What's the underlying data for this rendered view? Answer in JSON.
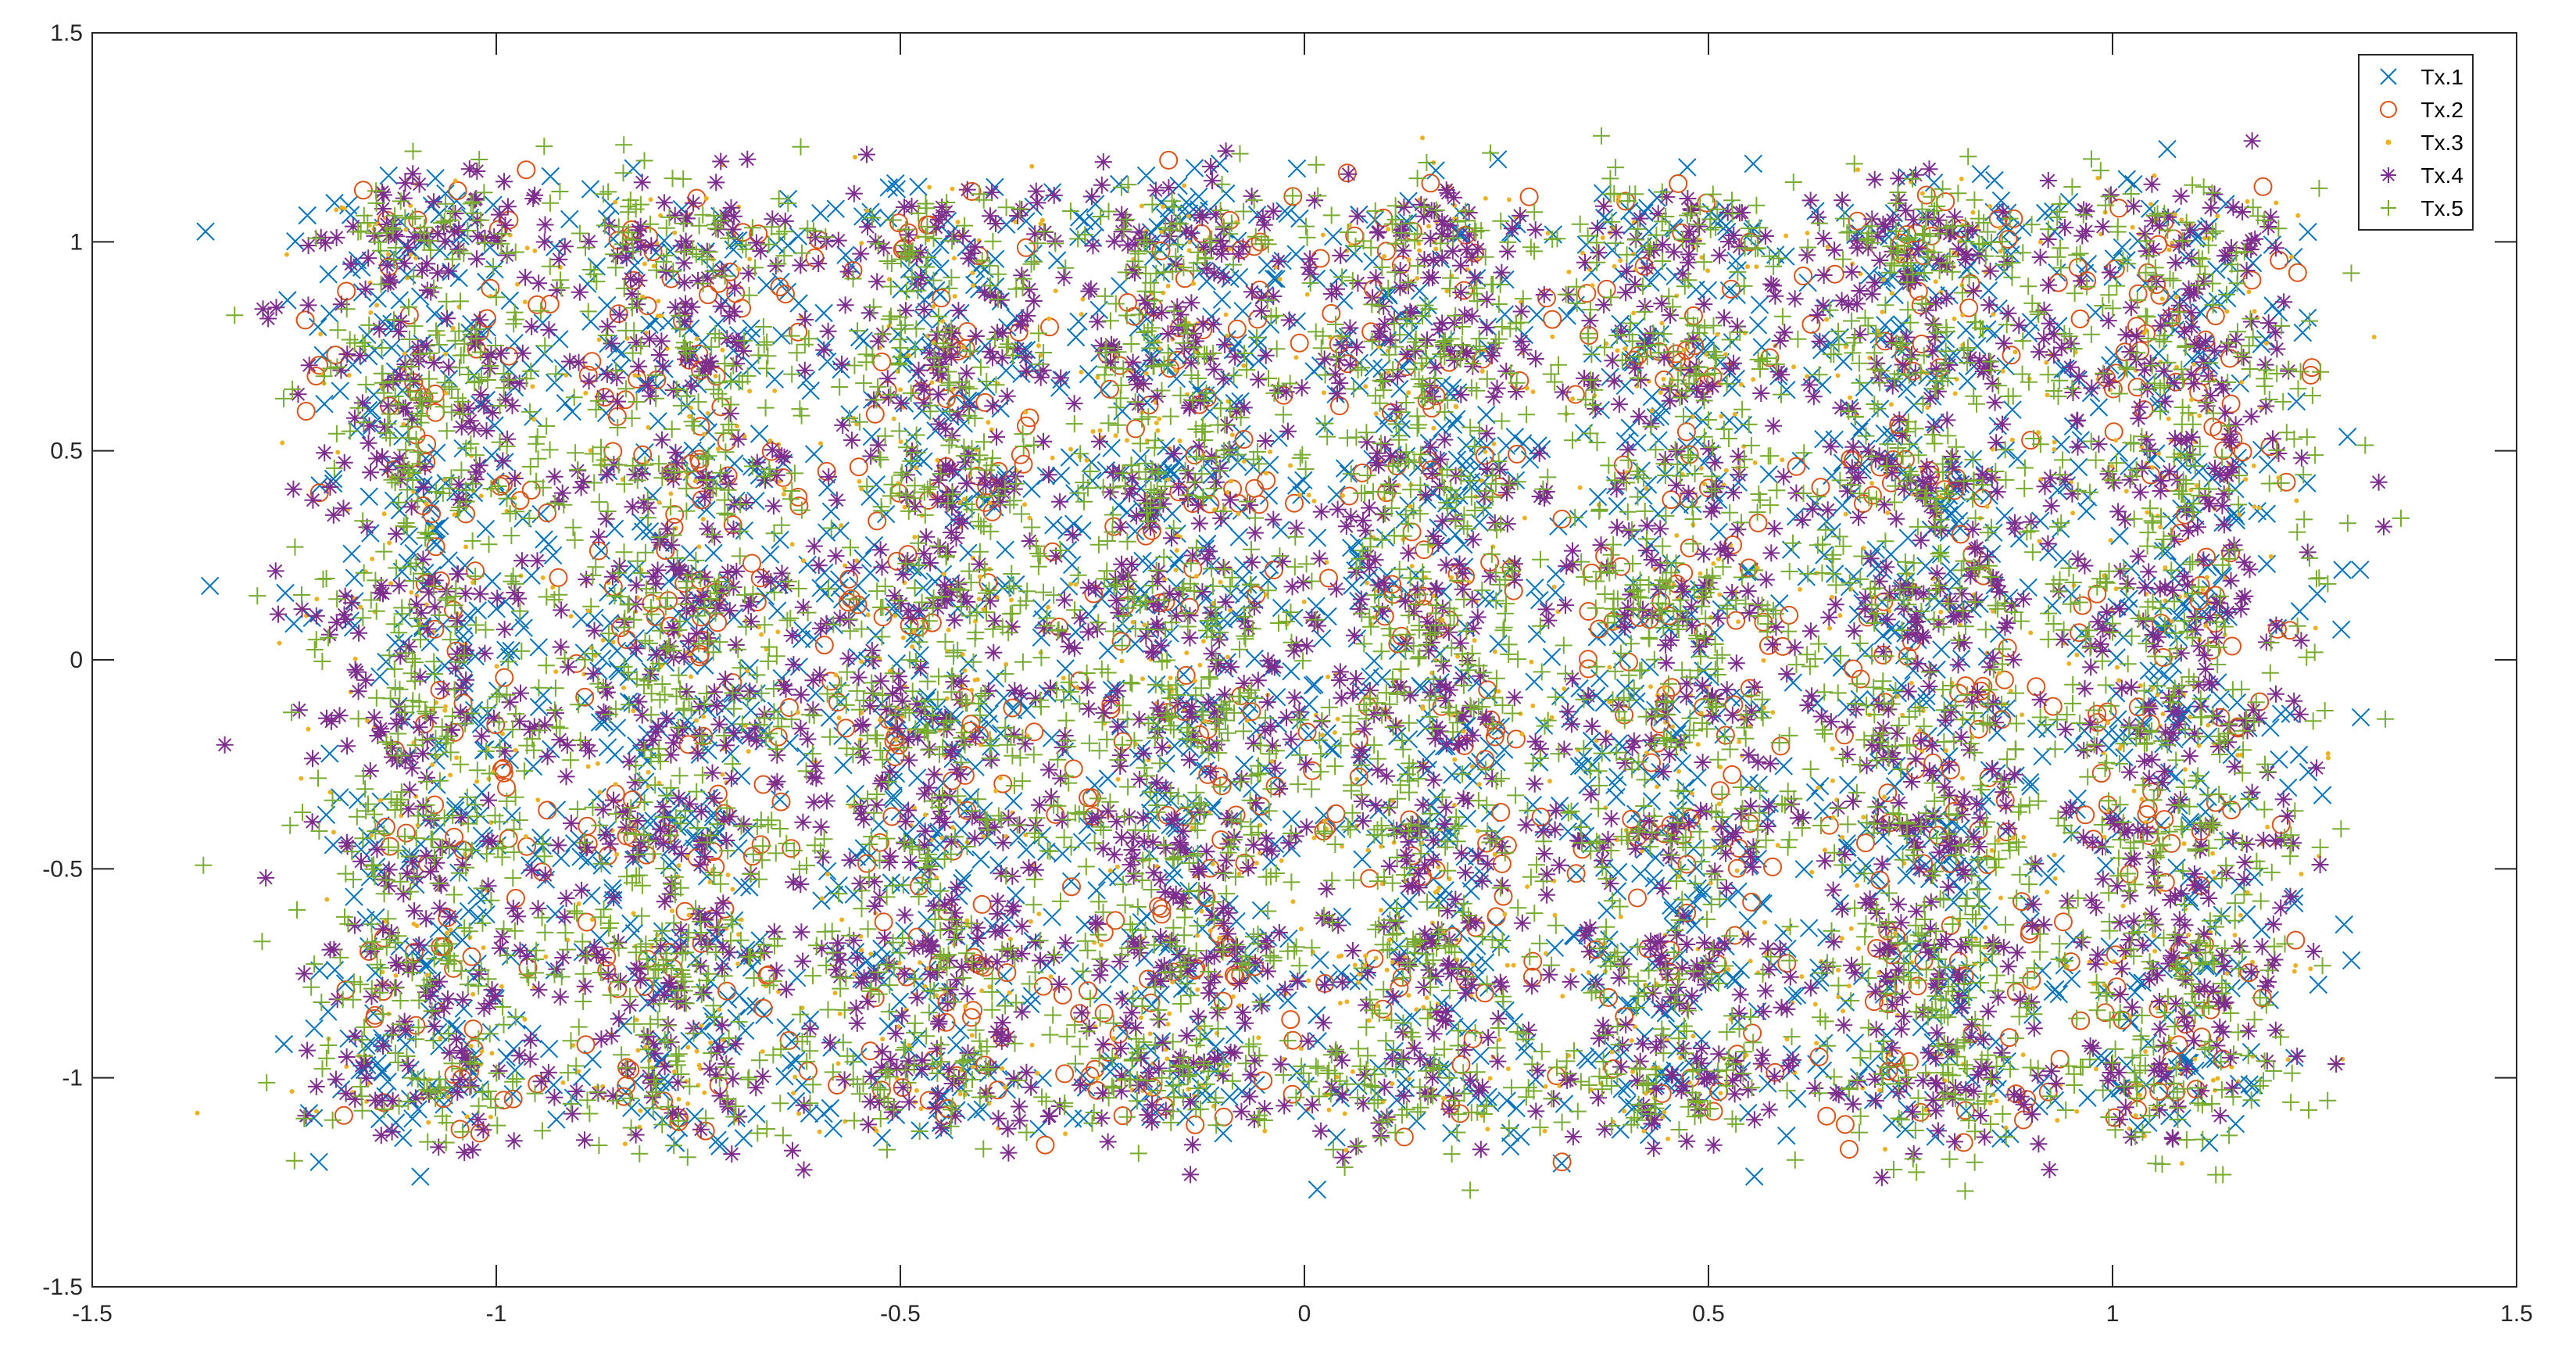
{
  "chart_data": {
    "type": "scatter",
    "title": "",
    "xlabel": "",
    "ylabel": "",
    "xlim": [
      -1.5,
      1.5
    ],
    "ylim": [
      -1.5,
      1.5
    ],
    "xticks": [
      "-1.5",
      "-1",
      "-0.5",
      "0",
      "0.5",
      "1",
      "1.5"
    ],
    "yticks": [
      "-1.5",
      "-1",
      "-0.5",
      "0",
      "0.5",
      "1",
      "1.5"
    ],
    "grid": false,
    "legend_position": "top-right",
    "description_of_data": "Noisy 64-QAM-like constellation: symbol clusters on an 8x8 grid spanning roughly -1.15 to 1.15 on both axes, with edge points reaching about ±1.4.",
    "constellation_levels_x": [
      -1.08,
      -0.77,
      -0.46,
      -0.15,
      0.15,
      0.46,
      0.77,
      1.08
    ],
    "constellation_levels_y": [
      -1.0,
      -0.72,
      -0.43,
      -0.14,
      0.14,
      0.43,
      0.72,
      1.0
    ],
    "series": [
      {
        "name": "Tx.1",
        "marker": "x",
        "color": "#0072BD"
      },
      {
        "name": "Tx.2",
        "marker": "o",
        "color": "#D95319"
      },
      {
        "name": "Tx.3",
        "marker": ".",
        "color": "#EDB120"
      },
      {
        "name": "Tx.4",
        "marker": "*",
        "color": "#7E2F8E"
      },
      {
        "name": "Tx.5",
        "marker": "+",
        "color": "#77AC30"
      }
    ]
  }
}
